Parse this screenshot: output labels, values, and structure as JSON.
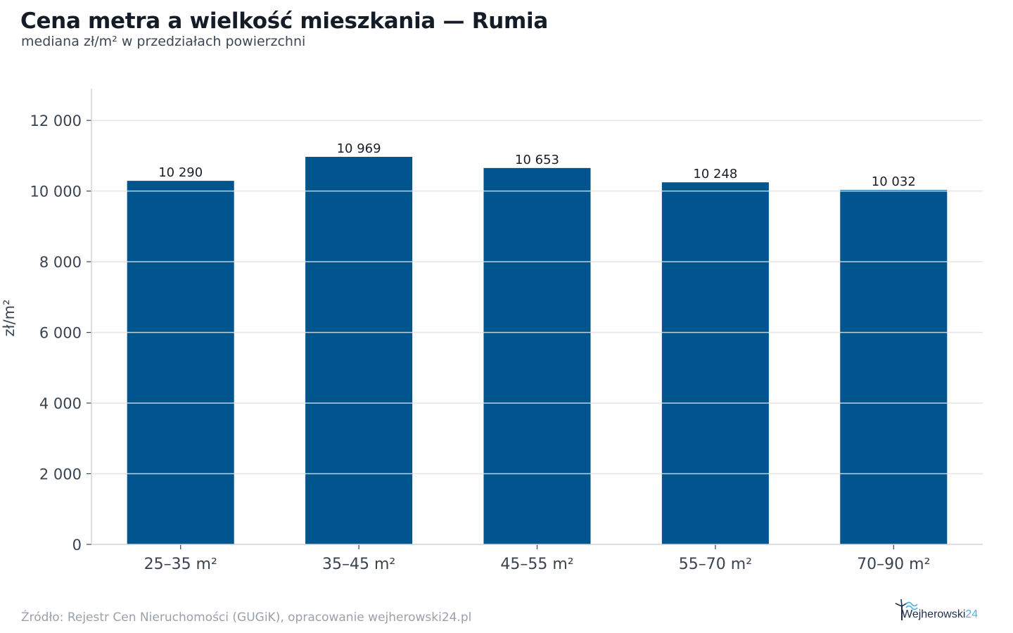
{
  "chart_data": {
    "type": "bar",
    "title": "Cena metra a wielkość mieszkania — Rumia",
    "subtitle": "mediana zł/m² w przedziałach powierzchni",
    "xlabel": "",
    "ylabel": "zł/m²",
    "categories": [
      "25–35 m²",
      "35–45 m²",
      "45–55 m²",
      "55–70 m²",
      "70–90 m²"
    ],
    "values": [
      10290,
      10969,
      10653,
      10248,
      10032
    ],
    "value_labels": [
      "10 290",
      "10 969",
      "10 653",
      "10 248",
      "10 032"
    ],
    "ylim": [
      0,
      12900
    ],
    "yticks": [
      0,
      2000,
      4000,
      6000,
      8000,
      10000,
      12000
    ],
    "ytick_labels": [
      "0",
      "2 000",
      "4 000",
      "6 000",
      "8 000",
      "10 000",
      "12 000"
    ],
    "grid": true,
    "legend": "none",
    "bar_color": "#00558e",
    "grid_color": "#e6e6e6"
  },
  "footer": {
    "source": "Źródło: Rejestr Cen Nieruchomości (GUGiK), opracowanie wejherowski24.pl"
  },
  "logo": {
    "name": "Wejherowski",
    "number": "24",
    "icon": "windmill-wave-icon"
  }
}
